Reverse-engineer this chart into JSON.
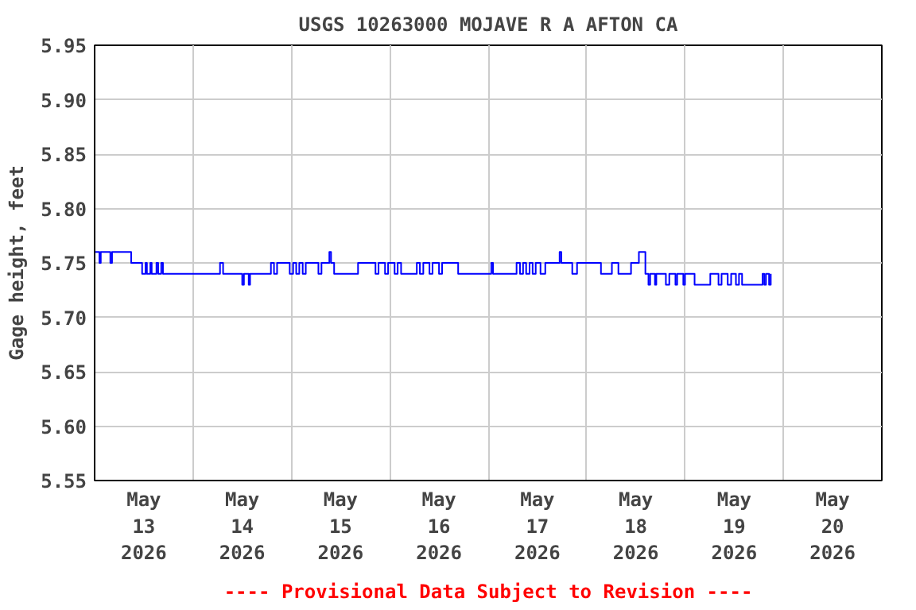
{
  "chart_data": {
    "type": "step",
    "title": "USGS 10263000 MOJAVE R A AFTON CA",
    "ylabel": "Gage height, feet",
    "annotations": [
      "---- Provisional Data Subject to Revision ----"
    ],
    "x": [
      "2026-05-13T00:00",
      "2026-05-13T01:10",
      "2026-05-13T01:30",
      "2026-05-13T03:50",
      "2026-05-13T04:15",
      "2026-05-13T08:55",
      "2026-05-13T11:15",
      "2026-05-13T11:35",
      "2026-05-13T12:25",
      "2026-05-13T12:45",
      "2026-05-13T13:35",
      "2026-05-13T13:55",
      "2026-05-13T15:05",
      "2026-05-13T15:30",
      "2026-05-13T16:15",
      "2026-05-13T16:40",
      "2026-05-14T06:10",
      "2026-05-14T06:35",
      "2026-05-14T07:20",
      "2026-05-14T12:00",
      "2026-05-14T12:25",
      "2026-05-14T13:35",
      "2026-05-14T13:55",
      "2026-05-14T18:10",
      "2026-05-14T19:00",
      "2026-05-14T19:45",
      "2026-05-14T20:30",
      "2026-05-14T23:15",
      "2026-05-14T23:35",
      "2026-05-15T00:25",
      "2026-05-15T01:10",
      "2026-05-15T01:55",
      "2026-05-15T02:45",
      "2026-05-15T03:30",
      "2026-05-15T05:50",
      "2026-05-15T06:35",
      "2026-05-15T07:20",
      "2026-05-15T08:55",
      "2026-05-15T09:15",
      "2026-05-15T09:40",
      "2026-05-15T10:25",
      "2026-05-15T16:15",
      "2026-05-15T19:45",
      "2026-05-15T20:30",
      "2026-05-15T21:15",
      "2026-05-15T22:50",
      "2026-05-15T23:35",
      "2026-05-16T01:10",
      "2026-05-16T01:55",
      "2026-05-16T02:45",
      "2026-05-16T06:35",
      "2026-05-16T07:20",
      "2026-05-16T08:10",
      "2026-05-16T09:40",
      "2026-05-16T10:25",
      "2026-05-16T12:00",
      "2026-05-16T12:45",
      "2026-05-16T16:40",
      "2026-05-17T00:25",
      "2026-05-17T00:45",
      "2026-05-17T01:10",
      "2026-05-17T06:55",
      "2026-05-17T07:45",
      "2026-05-17T08:30",
      "2026-05-17T09:15",
      "2026-05-17T10:05",
      "2026-05-17T10:50",
      "2026-05-17T11:35",
      "2026-05-17T12:45",
      "2026-05-17T13:55",
      "2026-05-17T17:00",
      "2026-05-17T17:25",
      "2026-05-17T17:50",
      "2026-05-17T20:30",
      "2026-05-17T21:40",
      "2026-05-18T03:30",
      "2026-05-18T06:10",
      "2026-05-18T07:45",
      "2026-05-18T10:25",
      "2026-05-18T10:50",
      "2026-05-18T12:45",
      "2026-05-18T13:55",
      "2026-05-18T14:20",
      "2026-05-18T15:05",
      "2026-05-18T15:30",
      "2026-05-18T16:40",
      "2026-05-18T17:00",
      "2026-05-18T18:55",
      "2026-05-18T19:20",
      "2026-05-18T20:10",
      "2026-05-18T21:40",
      "2026-05-18T22:05",
      "2026-05-18T23:35",
      "2026-05-19T00:00",
      "2026-05-19T02:20",
      "2026-05-19T06:10",
      "2026-05-19T08:10",
      "2026-05-19T08:55",
      "2026-05-19T10:25",
      "2026-05-19T11:15",
      "2026-05-19T12:25",
      "2026-05-19T13:10",
      "2026-05-19T13:55",
      "2026-05-19T18:55",
      "2026-05-19T19:20",
      "2026-05-19T19:45",
      "2026-05-19T20:30",
      "2026-05-19T20:55"
    ],
    "series": [
      {
        "color": "#0000ff",
        "values": [
          5.76,
          5.75,
          5.76,
          5.75,
          5.76,
          5.75,
          5.75,
          5.74,
          5.75,
          5.74,
          5.75,
          5.74,
          5.75,
          5.74,
          5.75,
          5.74,
          5.74,
          5.75,
          5.74,
          5.73,
          5.74,
          5.73,
          5.74,
          5.74,
          5.75,
          5.74,
          5.75,
          5.75,
          5.74,
          5.75,
          5.74,
          5.75,
          5.74,
          5.75,
          5.75,
          5.74,
          5.75,
          5.75,
          5.76,
          5.75,
          5.74,
          5.75,
          5.75,
          5.74,
          5.75,
          5.74,
          5.75,
          5.74,
          5.75,
          5.74,
          5.75,
          5.74,
          5.75,
          5.74,
          5.75,
          5.74,
          5.75,
          5.74,
          5.74,
          5.75,
          5.74,
          5.75,
          5.74,
          5.75,
          5.74,
          5.75,
          5.74,
          5.75,
          5.74,
          5.75,
          5.75,
          5.76,
          5.75,
          5.74,
          5.75,
          5.74,
          5.75,
          5.74,
          5.74,
          5.75,
          5.76,
          5.76,
          5.74,
          5.73,
          5.74,
          5.73,
          5.74,
          5.74,
          5.73,
          5.74,
          5.73,
          5.74,
          5.73,
          5.74,
          5.73,
          5.74,
          5.73,
          5.74,
          5.73,
          5.74,
          5.73,
          5.74,
          5.73,
          5.74,
          5.73,
          5.74,
          5.73,
          5.74
        ]
      }
    ],
    "xlim": [
      "2026-05-13T00:00",
      "2026-05-21T00:00"
    ],
    "xticks": [
      {
        "value": "2026-05-13T00:00",
        "label": null
      },
      {
        "value": "2026-05-13T12:00",
        "label": "May\n13\n2026"
      },
      {
        "value": "2026-05-14T00:00",
        "label": null
      },
      {
        "value": "2026-05-14T12:00",
        "label": "May\n14\n2026"
      },
      {
        "value": "2026-05-15T00:00",
        "label": null
      },
      {
        "value": "2026-05-15T12:00",
        "label": "May\n15\n2026"
      },
      {
        "value": "2026-05-16T00:00",
        "label": null
      },
      {
        "value": "2026-05-16T12:00",
        "label": "May\n16\n2026"
      },
      {
        "value": "2026-05-17T00:00",
        "label": null
      },
      {
        "value": "2026-05-17T12:00",
        "label": "May\n17\n2026"
      },
      {
        "value": "2026-05-18T00:00",
        "label": null
      },
      {
        "value": "2026-05-18T12:00",
        "label": "May\n18\n2026"
      },
      {
        "value": "2026-05-19T00:00",
        "label": null
      },
      {
        "value": "2026-05-19T12:00",
        "label": "May\n19\n2026"
      },
      {
        "value": "2026-05-20T00:00",
        "label": null
      },
      {
        "value": "2026-05-20T12:00",
        "label": "May\n20\n2026"
      },
      {
        "value": "2026-05-21T00:00",
        "label": null
      }
    ],
    "ylim": [
      5.55,
      5.95
    ],
    "yticks": [
      {
        "value": 5.55,
        "label": "5.55"
      },
      {
        "value": 5.6,
        "label": "5.60"
      },
      {
        "value": 5.65,
        "label": "5.65"
      },
      {
        "value": 5.7,
        "label": "5.70"
      },
      {
        "value": 5.75,
        "label": "5.75"
      },
      {
        "value": 5.8,
        "label": "5.80"
      },
      {
        "value": 5.85,
        "label": "5.85"
      },
      {
        "value": 5.9,
        "label": "5.90"
      },
      {
        "value": 5.95,
        "label": "5.95"
      }
    ],
    "grid": true,
    "marker": "none",
    "line_style": "solid"
  }
}
